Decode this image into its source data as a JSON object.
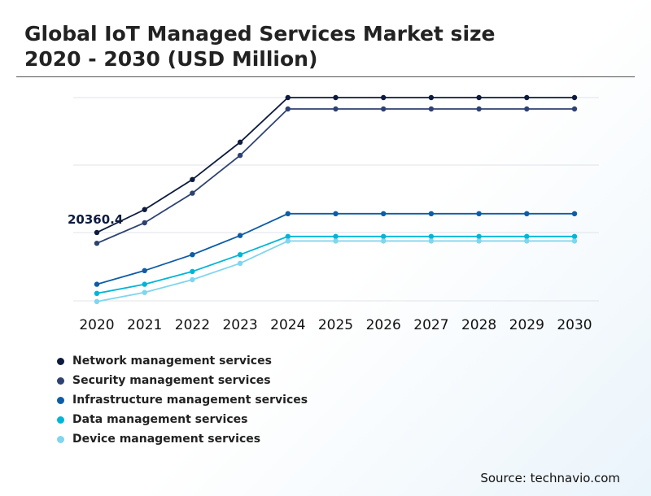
{
  "title": "Global IoT Managed Services Market size\n2020 - 2030 (USD Million)",
  "source": "Source: technavio.com",
  "chart_data": {
    "type": "line",
    "x": [
      "2020",
      "2021",
      "2022",
      "2023",
      "2024",
      "2025",
      "2026",
      "2027",
      "2028",
      "2029",
      "2030"
    ],
    "ylim": [
      5000,
      50000
    ],
    "grid": true,
    "legend": "bottom-left",
    "annotations": [
      {
        "series": "Network management services",
        "x": "2020",
        "text": "20360.4"
      }
    ],
    "series": [
      {
        "name": "Network management services",
        "color": "#0d1b3e",
        "values": [
          20360.4,
          25400,
          32000,
          40200,
          50000,
          50000,
          50000,
          50000,
          50000,
          50000,
          50000
        ]
      },
      {
        "name": "Security management services",
        "color": "#2e4272",
        "values": [
          18000,
          22500,
          29000,
          37300,
          47500,
          47500,
          47500,
          47500,
          47500,
          47500,
          47500
        ]
      },
      {
        "name": "Infrastructure management services",
        "color": "#0d5ca6",
        "values": [
          9000,
          12000,
          15500,
          19700,
          24500,
          24500,
          24500,
          24500,
          24500,
          24500,
          24500
        ]
      },
      {
        "name": "Data management services",
        "color": "#00b5d8",
        "values": [
          7000,
          9000,
          11800,
          15500,
          19500,
          19500,
          19500,
          19500,
          19500,
          19500,
          19500
        ]
      },
      {
        "name": "Device management services",
        "color": "#7fd6ee",
        "values": [
          5200,
          7200,
          10000,
          13600,
          18500,
          18500,
          18500,
          18500,
          18500,
          18500,
          18500
        ]
      }
    ]
  }
}
